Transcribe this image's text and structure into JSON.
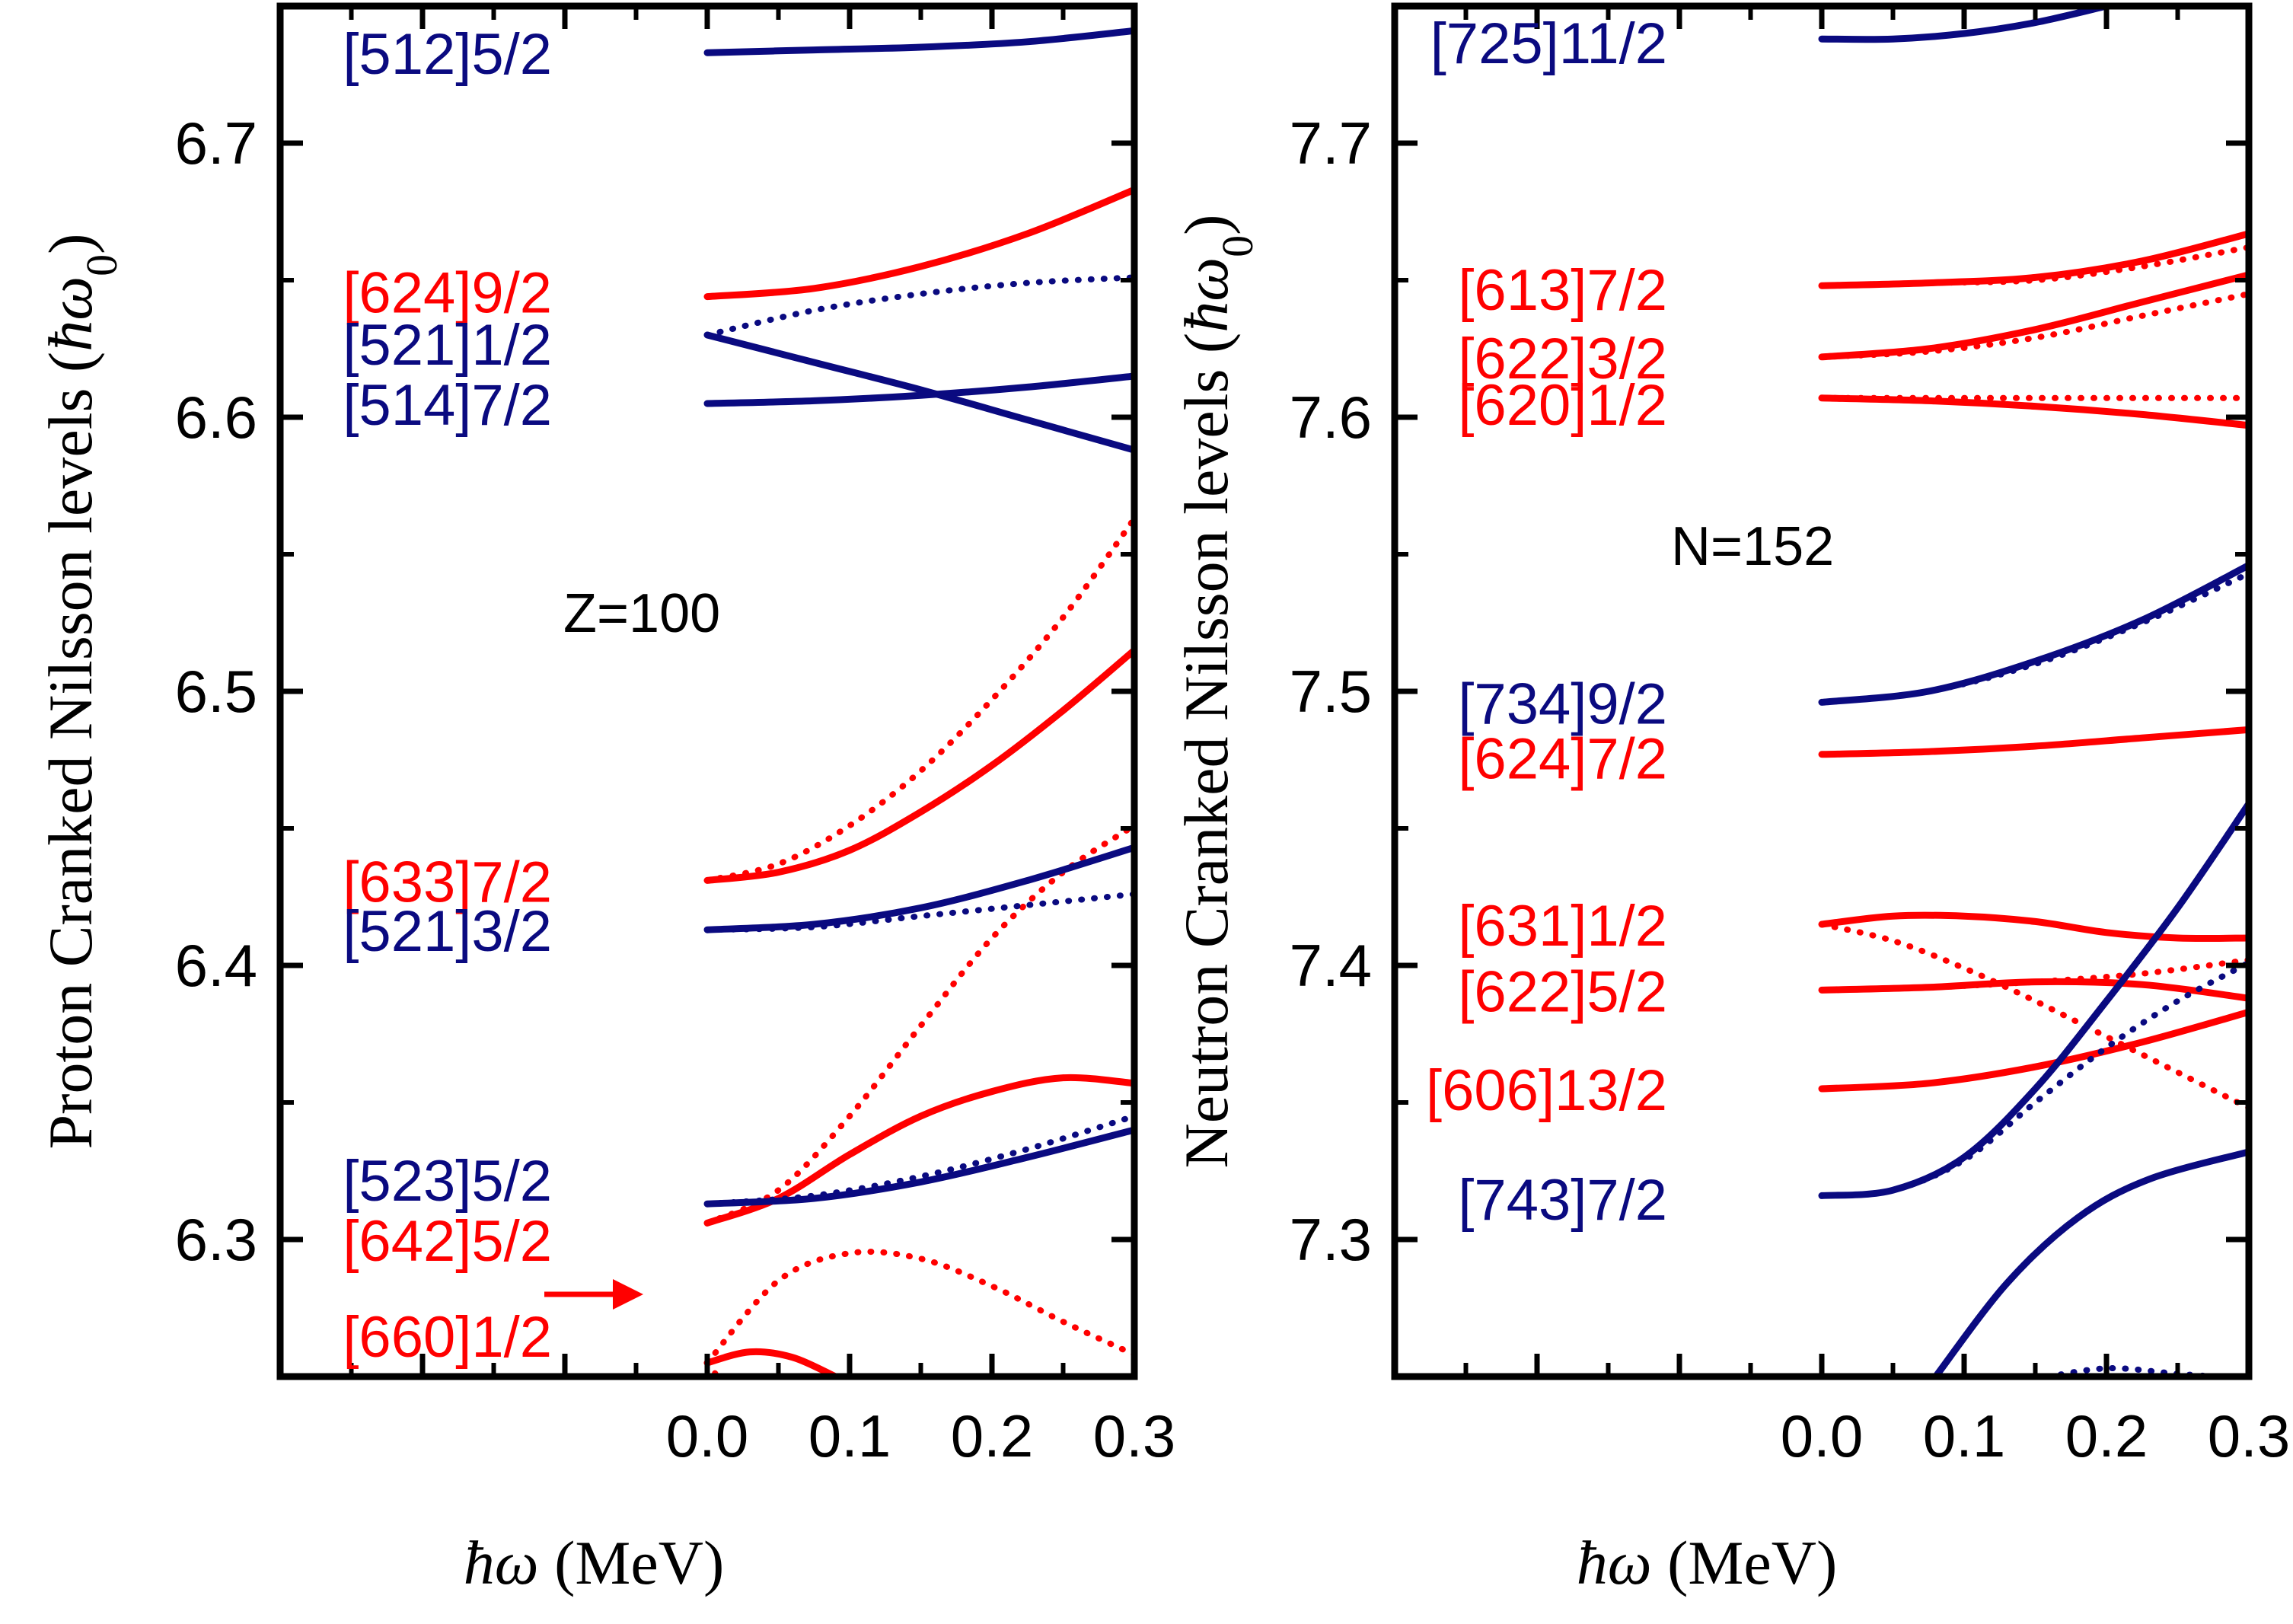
{
  "colors": {
    "proton_like": "#ff0000",
    "neutron_like": "#0a0a80",
    "axis": "#000000"
  },
  "arrow_icon": "right-arrow-icon",
  "chart_data": [
    {
      "type": "line",
      "nucleus_label": "Z=100",
      "ylabel_text": "Proton Cranked Nilsson levels (",
      "ylabel_hbar": "ħω",
      "ylabel_sub": "0",
      "ylabel_close": ")",
      "xlabel_hbar": "ħω",
      "xlabel_unit": " (MeV)",
      "xlim": [
        -0.3,
        0.3
      ],
      "ylim": [
        6.25,
        6.75
      ],
      "x_ticks": [
        0.0,
        0.1,
        0.2,
        0.3
      ],
      "x_tick_labels": [
        "0.0",
        "0.1",
        "0.2",
        "0.3"
      ],
      "y_ticks": [
        6.3,
        6.4,
        6.5,
        6.6,
        6.7
      ],
      "y_tick_labels": [
        "6.3",
        "6.4",
        "6.5",
        "6.6",
        "6.7"
      ],
      "grid": false,
      "labels": [
        {
          "text": "[512]5/2",
          "color": "blue",
          "y": 6.733
        },
        {
          "text": "[624]9/2",
          "color": "red",
          "y": 6.646
        },
        {
          "text": "[521]1/2",
          "color": "blue",
          "y": 6.627
        },
        {
          "text": "[514]7/2",
          "color": "blue",
          "y": 6.605
        },
        {
          "text": "[633]7/2",
          "color": "red",
          "y": 6.431
        },
        {
          "text": "[521]3/2",
          "color": "blue",
          "y": 6.413
        },
        {
          "text": "[523]5/2",
          "color": "blue",
          "y": 6.322
        },
        {
          "text": "[642]5/2",
          "color": "red",
          "y": 6.3
        },
        {
          "text": "[660]1/2",
          "color": "red",
          "y": 6.265
        }
      ],
      "series": [
        {
          "color": "blue",
          "style": "solid",
          "x": [
            0,
            0.075,
            0.15,
            0.225,
            0.3
          ],
          "y": [
            6.733,
            6.734,
            6.735,
            6.737,
            6.741
          ]
        },
        {
          "color": "red",
          "style": "solid",
          "x": [
            0,
            0.075,
            0.15,
            0.225,
            0.3
          ],
          "y": [
            6.644,
            6.647,
            6.655,
            6.667,
            6.683
          ]
        },
        {
          "color": "blue",
          "style": "dotted",
          "x": [
            0,
            0.075,
            0.15,
            0.225,
            0.3
          ],
          "y": [
            6.63,
            6.639,
            6.645,
            6.649,
            6.651
          ]
        },
        {
          "color": "blue",
          "style": "solid",
          "x": [
            0,
            0.075,
            0.15,
            0.225,
            0.3
          ],
          "y": [
            6.63,
            6.62,
            6.61,
            6.599,
            6.588
          ]
        },
        {
          "color": "blue",
          "style": "solid",
          "x": [
            0,
            0.075,
            0.15,
            0.225,
            0.3
          ],
          "y": [
            6.605,
            6.606,
            6.608,
            6.611,
            6.615
          ]
        },
        {
          "color": "red",
          "style": "dotted",
          "x": [
            0,
            0.05,
            0.1,
            0.15,
            0.2,
            0.25,
            0.3
          ],
          "y": [
            6.431,
            6.437,
            6.451,
            6.471,
            6.497,
            6.527,
            6.563
          ]
        },
        {
          "color": "red",
          "style": "solid",
          "x": [
            0,
            0.05,
            0.1,
            0.15,
            0.2,
            0.25,
            0.3
          ],
          "y": [
            6.431,
            6.434,
            6.442,
            6.456,
            6.473,
            6.493,
            6.515
          ]
        },
        {
          "color": "red",
          "style": "dotted",
          "x": [
            0,
            0.05,
            0.1,
            0.15,
            0.2,
            0.25,
            0.3
          ],
          "y": [
            6.306,
            6.318,
            6.345,
            6.378,
            6.41,
            6.434,
            6.451
          ]
        },
        {
          "color": "blue",
          "style": "solid",
          "x": [
            0,
            0.075,
            0.15,
            0.225,
            0.3
          ],
          "y": [
            6.413,
            6.415,
            6.421,
            6.431,
            6.443
          ]
        },
        {
          "color": "blue",
          "style": "dotted",
          "x": [
            0,
            0.075,
            0.15,
            0.225,
            0.3
          ],
          "y": [
            6.413,
            6.414,
            6.418,
            6.422,
            6.426
          ]
        },
        {
          "color": "red",
          "style": "solid",
          "x": [
            0,
            0.05,
            0.1,
            0.15,
            0.2,
            0.25,
            0.3
          ],
          "y": [
            6.306,
            6.315,
            6.331,
            6.345,
            6.354,
            6.359,
            6.357
          ]
        },
        {
          "color": "blue",
          "style": "solid",
          "x": [
            0,
            0.075,
            0.15,
            0.225,
            0.3
          ],
          "y": [
            6.313,
            6.315,
            6.321,
            6.33,
            6.34
          ]
        },
        {
          "color": "blue",
          "style": "dotted",
          "x": [
            0,
            0.075,
            0.15,
            0.225,
            0.3
          ],
          "y": [
            6.313,
            6.316,
            6.323,
            6.333,
            6.345
          ]
        },
        {
          "color": "red",
          "style": "dotted",
          "x": [
            0,
            0.05,
            0.1,
            0.15,
            0.2,
            0.25,
            0.3
          ],
          "y": [
            6.255,
            6.285,
            6.295,
            6.293,
            6.283,
            6.27,
            6.258
          ]
        },
        {
          "color": "red",
          "style": "solid",
          "x": [
            0,
            0.03,
            0.06,
            0.09
          ],
          "y": [
            6.255,
            6.259,
            6.257,
            6.25
          ]
        },
        {
          "color": "red",
          "style": "dotted",
          "x": [
            0,
            0.01
          ],
          "y": [
            6.255,
            6.248
          ]
        }
      ],
      "arrow_y": 6.28
    },
    {
      "type": "line",
      "nucleus_label": "N=152",
      "ylabel_text": "Neutron Cranked Nilsson levels (",
      "ylabel_hbar": "ħω",
      "ylabel_sub": "0",
      "ylabel_close": ")",
      "xlabel_hbar": "ħω",
      "xlabel_unit": " (MeV)",
      "xlim": [
        -0.3,
        0.3
      ],
      "ylim": [
        7.25,
        7.75
      ],
      "x_ticks": [
        0.0,
        0.1,
        0.2,
        0.3
      ],
      "x_tick_labels": [
        "0.0",
        "0.1",
        "0.2",
        "0.3"
      ],
      "y_ticks": [
        7.3,
        7.4,
        7.5,
        7.6,
        7.7
      ],
      "y_tick_labels": [
        "7.3",
        "7.4",
        "7.5",
        "7.6",
        "7.7"
      ],
      "grid": false,
      "labels": [
        {
          "text": "[725]11/2",
          "color": "blue",
          "y": 7.737
        },
        {
          "text": "[613]7/2",
          "color": "red",
          "y": 7.647
        },
        {
          "text": "[622]3/2",
          "color": "red",
          "y": 7.622
        },
        {
          "text": "[620]1/2",
          "color": "red",
          "y": 7.605
        },
        {
          "text": "[734]9/2",
          "color": "blue",
          "y": 7.496
        },
        {
          "text": "[624]7/2",
          "color": "red",
          "y": 7.476
        },
        {
          "text": "[631]1/2",
          "color": "red",
          "y": 7.415
        },
        {
          "text": "[622]5/2",
          "color": "red",
          "y": 7.391
        },
        {
          "text": "[606]13/2",
          "color": "red",
          "y": 7.355
        },
        {
          "text": "[743]7/2",
          "color": "blue",
          "y": 7.315
        }
      ],
      "series": [
        {
          "color": "blue",
          "style": "solid",
          "x": [
            0,
            0.05,
            0.1,
            0.15,
            0.2
          ],
          "y": [
            7.738,
            7.738,
            7.74,
            7.744,
            7.75
          ]
        },
        {
          "color": "red",
          "style": "solid",
          "x": [
            0,
            0.075,
            0.15,
            0.225,
            0.3
          ],
          "y": [
            7.648,
            7.649,
            7.651,
            7.657,
            7.667
          ]
        },
        {
          "color": "red",
          "style": "dotted",
          "x": [
            0,
            0.075,
            0.15,
            0.225,
            0.3
          ],
          "y": [
            7.648,
            7.649,
            7.65,
            7.655,
            7.662
          ]
        },
        {
          "color": "red",
          "style": "solid",
          "x": [
            0,
            0.075,
            0.15,
            0.225,
            0.3
          ],
          "y": [
            7.622,
            7.625,
            7.632,
            7.642,
            7.652
          ]
        },
        {
          "color": "red",
          "style": "dotted",
          "x": [
            0,
            0.075,
            0.15,
            0.225,
            0.3
          ],
          "y": [
            7.622,
            7.624,
            7.629,
            7.637,
            7.645
          ]
        },
        {
          "color": "red",
          "style": "solid",
          "x": [
            0,
            0.075,
            0.15,
            0.225,
            0.3
          ],
          "y": [
            7.607,
            7.606,
            7.604,
            7.601,
            7.597
          ]
        },
        {
          "color": "red",
          "style": "dotted",
          "x": [
            0,
            0.075,
            0.15,
            0.225,
            0.3
          ],
          "y": [
            7.607,
            7.607,
            7.607,
            7.607,
            7.607
          ]
        },
        {
          "color": "blue",
          "style": "solid",
          "x": [
            0,
            0.075,
            0.15,
            0.225,
            0.3
          ],
          "y": [
            7.496,
            7.5,
            7.511,
            7.526,
            7.546
          ]
        },
        {
          "color": "blue",
          "style": "dotted",
          "x": [
            0,
            0.075,
            0.15,
            0.225,
            0.3
          ],
          "y": [
            7.496,
            7.5,
            7.51,
            7.525,
            7.543
          ]
        },
        {
          "color": "red",
          "style": "solid",
          "x": [
            0,
            0.075,
            0.15,
            0.225,
            0.3
          ],
          "y": [
            7.477,
            7.478,
            7.48,
            7.483,
            7.486
          ]
        },
        {
          "color": "red",
          "style": "solid",
          "x": [
            0,
            0.05,
            0.1,
            0.15,
            0.2,
            0.25,
            0.3
          ],
          "y": [
            7.415,
            7.418,
            7.418,
            7.416,
            7.412,
            7.41,
            7.41
          ]
        },
        {
          "color": "red",
          "style": "dotted",
          "x": [
            0,
            0.05,
            0.1,
            0.15,
            0.2,
            0.25,
            0.3
          ],
          "y": [
            7.415,
            7.409,
            7.399,
            7.387,
            7.374,
            7.361,
            7.348
          ]
        },
        {
          "color": "red",
          "style": "solid",
          "x": [
            0,
            0.075,
            0.15,
            0.225,
            0.3
          ],
          "y": [
            7.391,
            7.392,
            7.394,
            7.393,
            7.388
          ]
        },
        {
          "color": "red",
          "style": "dotted",
          "x": [
            0,
            0.075,
            0.15,
            0.225,
            0.3
          ],
          "y": [
            7.391,
            7.392,
            7.394,
            7.397,
            7.402
          ]
        },
        {
          "color": "red",
          "style": "solid",
          "x": [
            0,
            0.075,
            0.15,
            0.225,
            0.3
          ],
          "y": [
            7.355,
            7.357,
            7.363,
            7.372,
            7.383
          ]
        },
        {
          "color": "blue",
          "style": "solid",
          "x": [
            0,
            0.05,
            0.1,
            0.15,
            0.2,
            0.25,
            0.3
          ],
          "y": [
            7.316,
            7.318,
            7.33,
            7.355,
            7.387,
            7.421,
            7.459
          ]
        },
        {
          "color": "blue",
          "style": "dotted",
          "x": [
            0,
            0.05,
            0.1,
            0.15,
            0.2,
            0.25,
            0.3
          ],
          "y": [
            7.316,
            7.318,
            7.329,
            7.35,
            7.37,
            7.387,
            7.401
          ]
        },
        {
          "color": "blue",
          "style": "solid",
          "x": [
            0.08,
            0.13,
            0.18,
            0.23,
            0.3
          ],
          "y": [
            7.25,
            7.284,
            7.308,
            7.322,
            7.332
          ]
        },
        {
          "color": "blue",
          "style": "dotted",
          "x": [
            0.15,
            0.2,
            0.25,
            0.3
          ],
          "y": [
            7.249,
            7.253,
            7.251,
            7.249
          ]
        }
      ]
    }
  ]
}
